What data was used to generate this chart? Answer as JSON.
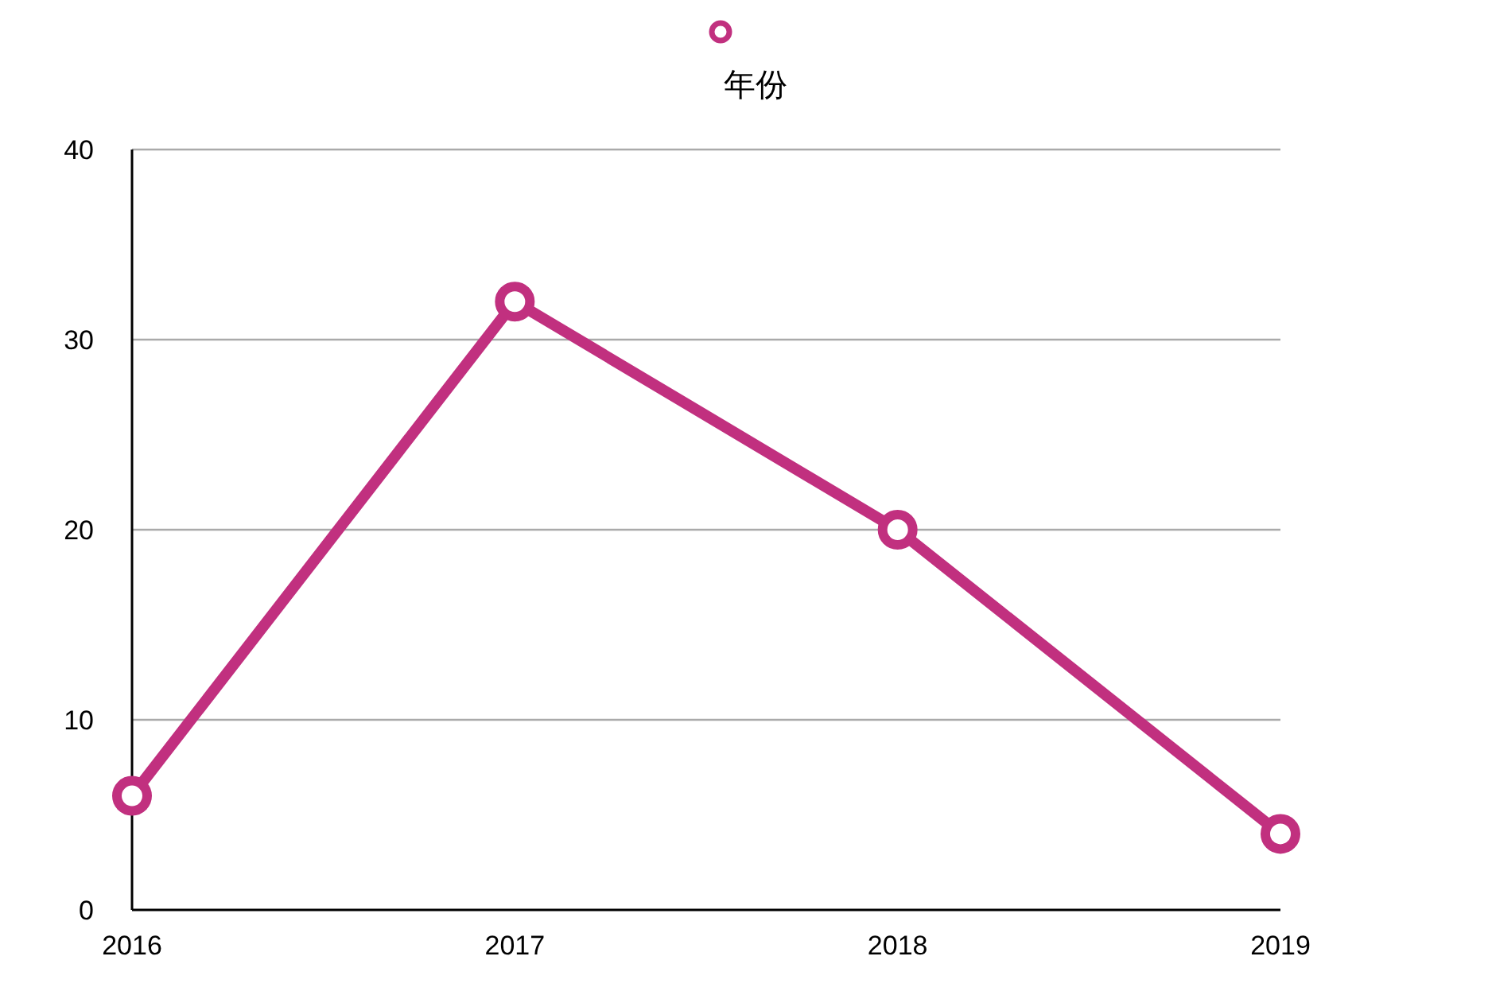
{
  "chart_data": {
    "type": "line",
    "categories": [
      "2016",
      "2017",
      "2018",
      "2019"
    ],
    "series": [
      {
        "name": "年份",
        "color": "#c1307f",
        "values": [
          6,
          32,
          20,
          4
        ]
      }
    ],
    "ylim": [
      0,
      40
    ],
    "yticks": [
      0,
      10,
      20,
      30,
      40
    ],
    "grid": "y",
    "legend": "top",
    "marker": "circle",
    "line_style": "solid"
  }
}
